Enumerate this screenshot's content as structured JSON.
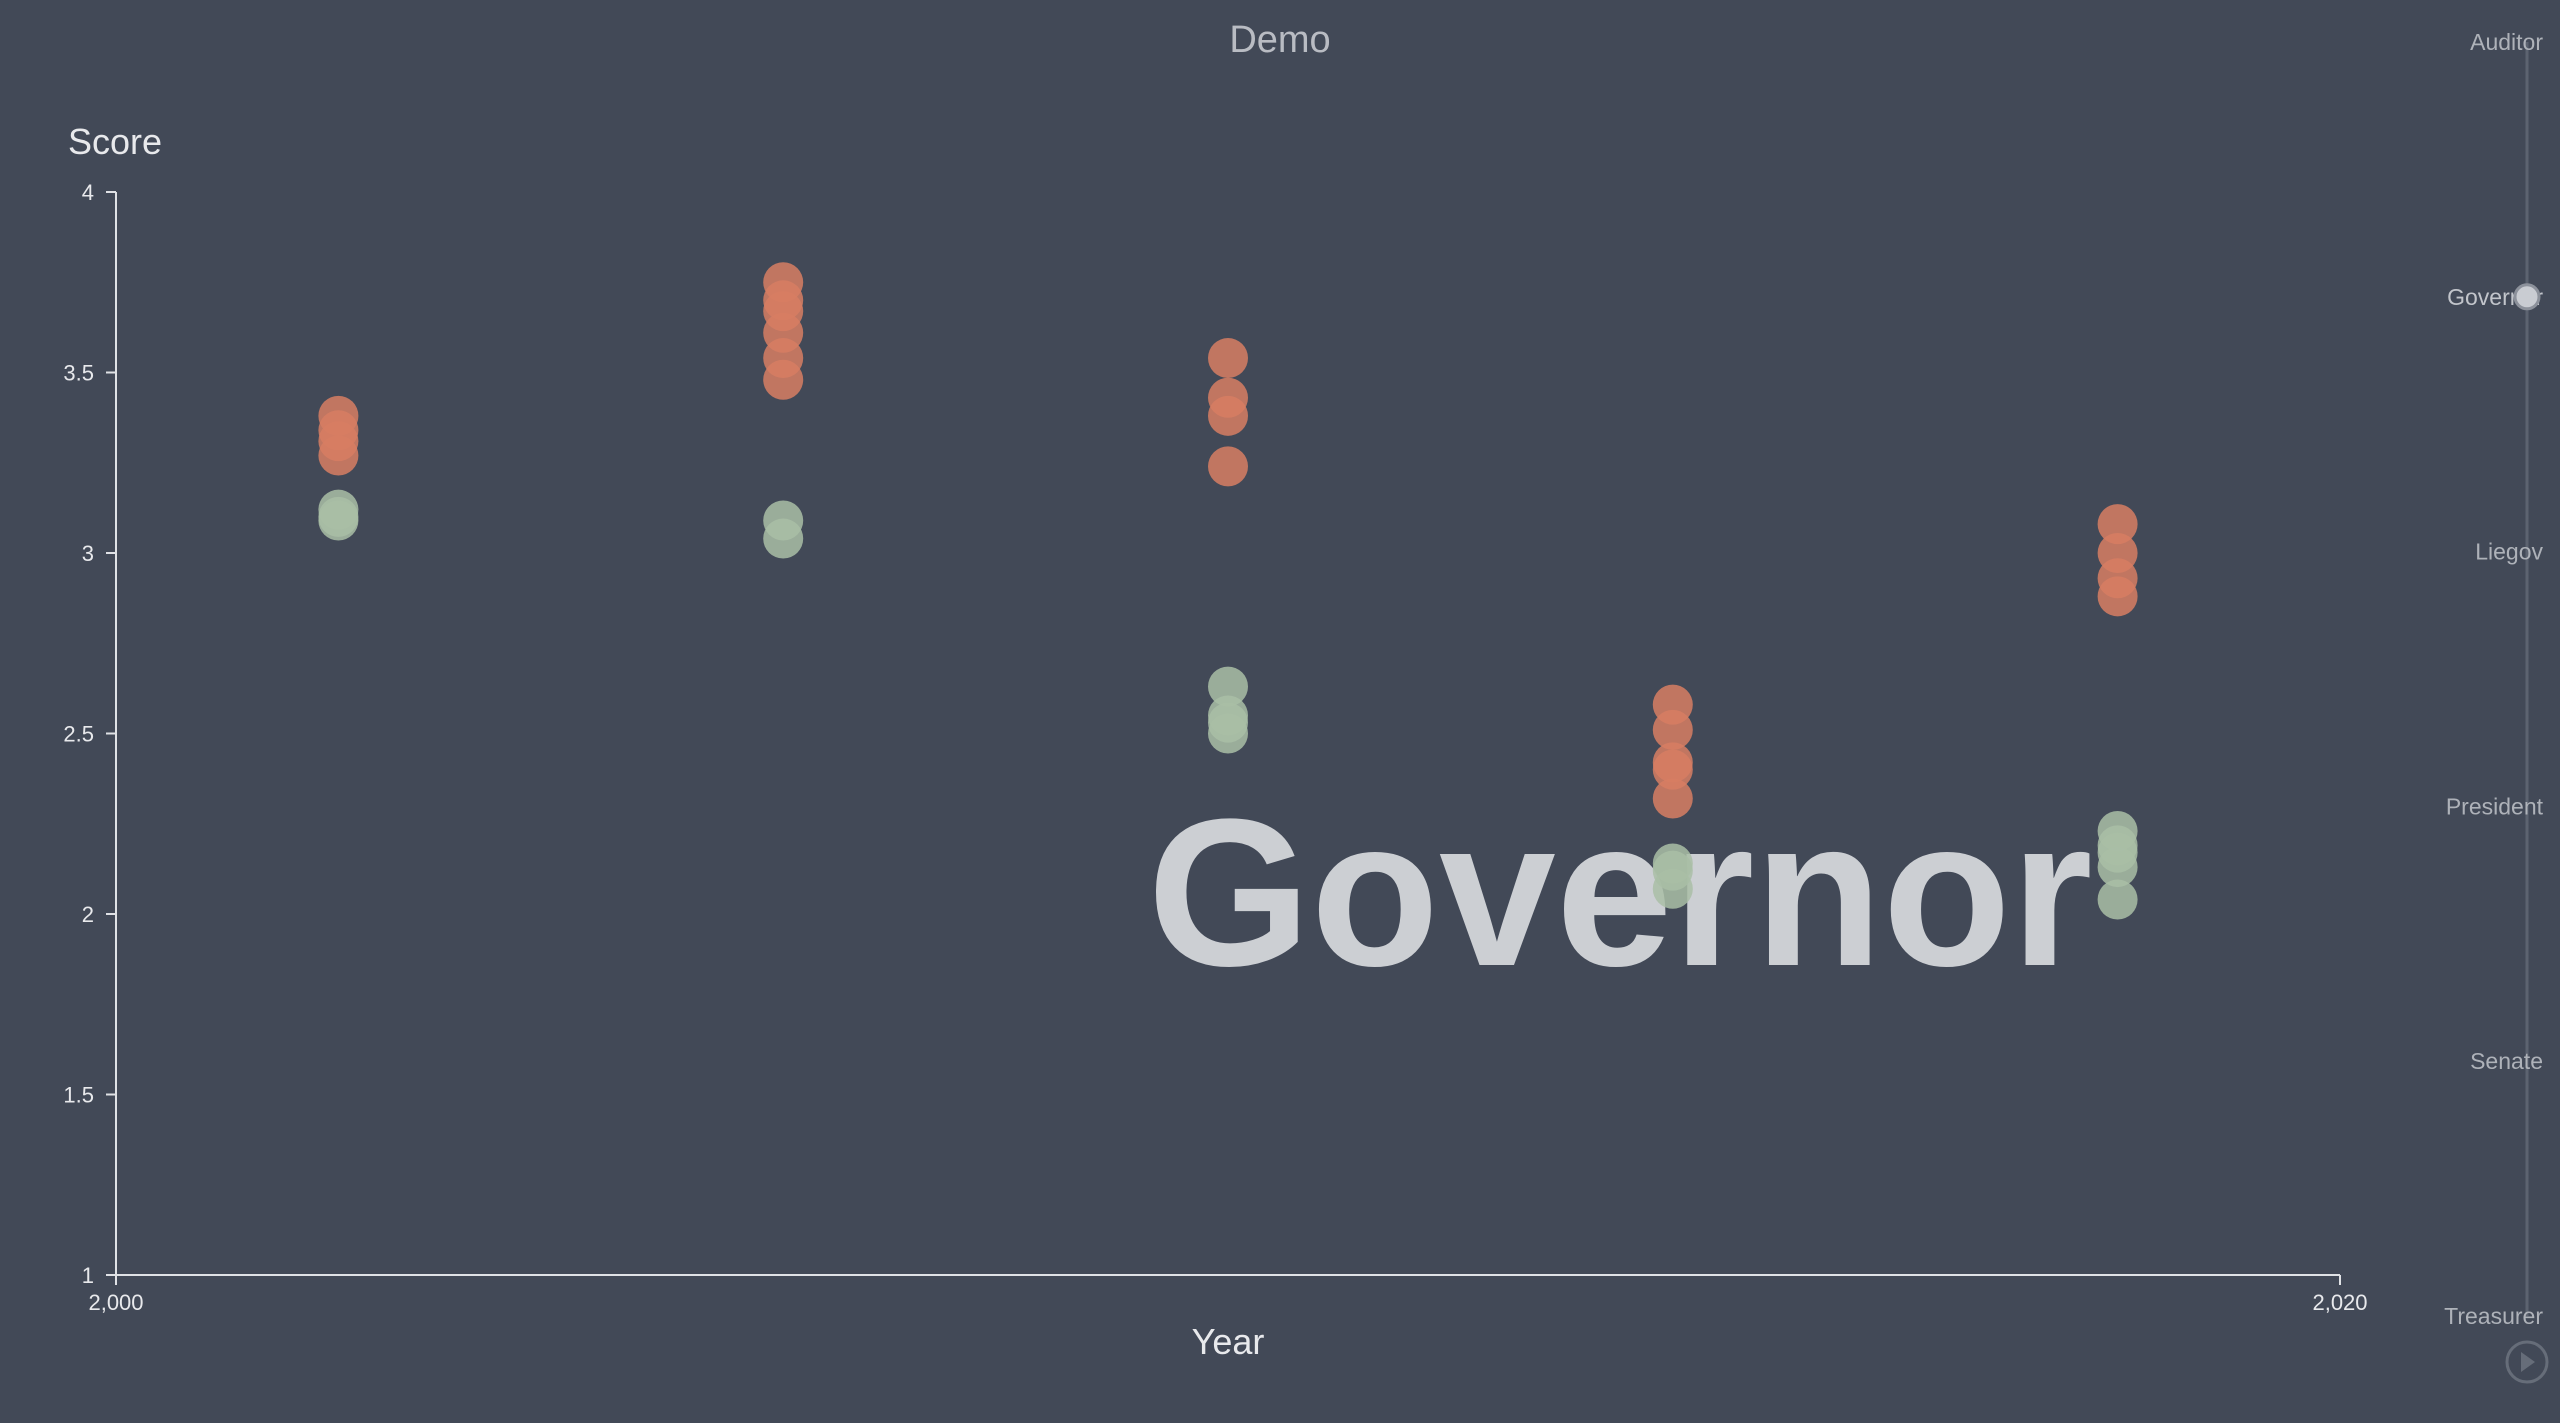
{
  "chart_data": {
    "type": "scatter",
    "title": "Demo",
    "xlabel": "Year",
    "ylabel": "Score",
    "xlim": [
      2000,
      2020
    ],
    "ylim": [
      1,
      4
    ],
    "x_ticks": [
      {
        "value": 2000,
        "label": "2,000"
      },
      {
        "value": 2020,
        "label": "2,020"
      }
    ],
    "y_ticks": [
      {
        "value": 1,
        "label": "1"
      },
      {
        "value": 1.5,
        "label": "1.5"
      },
      {
        "value": 2,
        "label": "2"
      },
      {
        "value": 2.5,
        "label": "2.5"
      },
      {
        "value": 3,
        "label": "3"
      },
      {
        "value": 3.5,
        "label": "3.5"
      },
      {
        "value": 4,
        "label": "4"
      }
    ],
    "grid": false,
    "legend": "none",
    "watermark": "Governor",
    "series": [
      {
        "color": "#d77e63",
        "points": [
          {
            "x": 2002,
            "y": 3.38
          },
          {
            "x": 2002,
            "y": 3.34
          },
          {
            "x": 2002,
            "y": 3.31
          },
          {
            "x": 2002,
            "y": 3.27
          },
          {
            "x": 2006,
            "y": 3.75
          },
          {
            "x": 2006,
            "y": 3.7
          },
          {
            "x": 2006,
            "y": 3.67
          },
          {
            "x": 2006,
            "y": 3.61
          },
          {
            "x": 2006,
            "y": 3.54
          },
          {
            "x": 2006,
            "y": 3.48
          },
          {
            "x": 2010,
            "y": 3.54
          },
          {
            "x": 2010,
            "y": 3.43
          },
          {
            "x": 2010,
            "y": 3.38
          },
          {
            "x": 2010,
            "y": 3.24
          },
          {
            "x": 2014,
            "y": 2.58
          },
          {
            "x": 2014,
            "y": 2.51
          },
          {
            "x": 2014,
            "y": 2.42
          },
          {
            "x": 2014,
            "y": 2.4
          },
          {
            "x": 2014,
            "y": 2.32
          },
          {
            "x": 2018,
            "y": 3.08
          },
          {
            "x": 2018,
            "y": 3.0
          },
          {
            "x": 2018,
            "y": 2.93
          },
          {
            "x": 2018,
            "y": 2.88
          }
        ]
      },
      {
        "color": "#a9bea6",
        "points": [
          {
            "x": 2002,
            "y": 3.12
          },
          {
            "x": 2002,
            "y": 3.1
          },
          {
            "x": 2002,
            "y": 3.09
          },
          {
            "x": 2006,
            "y": 3.09
          },
          {
            "x": 2006,
            "y": 3.04
          },
          {
            "x": 2010,
            "y": 2.63
          },
          {
            "x": 2010,
            "y": 2.55
          },
          {
            "x": 2010,
            "y": 2.53
          },
          {
            "x": 2010,
            "y": 2.5
          },
          {
            "x": 2014,
            "y": 2.14
          },
          {
            "x": 2014,
            "y": 2.12
          },
          {
            "x": 2014,
            "y": 2.07
          },
          {
            "x": 2018,
            "y": 2.23
          },
          {
            "x": 2018,
            "y": 2.19
          },
          {
            "x": 2018,
            "y": 2.17
          },
          {
            "x": 2018,
            "y": 2.13
          },
          {
            "x": 2018,
            "y": 2.04
          }
        ]
      }
    ]
  },
  "timeline": {
    "items": [
      "Auditor",
      "Governor",
      "Liegov",
      "President",
      "Senate",
      "Treasurer"
    ],
    "selected_index": 1,
    "play_icon": "play-icon"
  }
}
